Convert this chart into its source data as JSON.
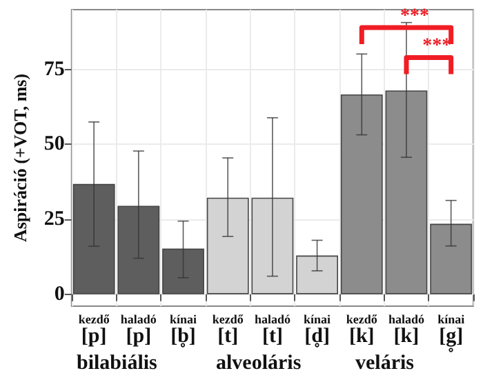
{
  "chart_data": {
    "type": "bar",
    "ylabel": "Aspiráció (+VOT, ms)",
    "categories": [
      "kezdő\n[p]",
      "haladó\n[p]",
      "kínai\n[b̥]",
      "kezdő\n[t]",
      "haladó\n[t]",
      "kínai\n[d̥]",
      "kezdő\n[k]",
      "haladó\n[k]",
      "kínai\n[g̥]"
    ],
    "values": [
      36.8,
      29.5,
      15.2,
      32.2,
      32.2,
      12.9,
      66.7,
      68,
      23.5
    ],
    "colors": [
      "#5e5e5e",
      "#5e5e5e",
      "#5e5e5e",
      "#d3d3d3",
      "#d3d3d3",
      "#d3d3d3",
      "#8c8c8c",
      "#8c8c8c",
      "#8c8c8c"
    ],
    "errors": [
      [
        16,
        57.5
      ],
      [
        12,
        47.8
      ],
      [
        5.5,
        24.4
      ],
      [
        19.3,
        45.5
      ],
      [
        6,
        58.9
      ],
      [
        7.8,
        18
      ],
      [
        53.2,
        80.2
      ],
      [
        45.7,
        90.7
      ],
      [
        16.1,
        31.3
      ]
    ],
    "ylim": [
      -4,
      95
    ],
    "yticks": [
      0,
      25,
      50,
      75
    ],
    "grid": true,
    "annotations": [
      "bilabiális",
      "alveoláris",
      "veláris",
      "***",
      "***"
    ]
  }
}
